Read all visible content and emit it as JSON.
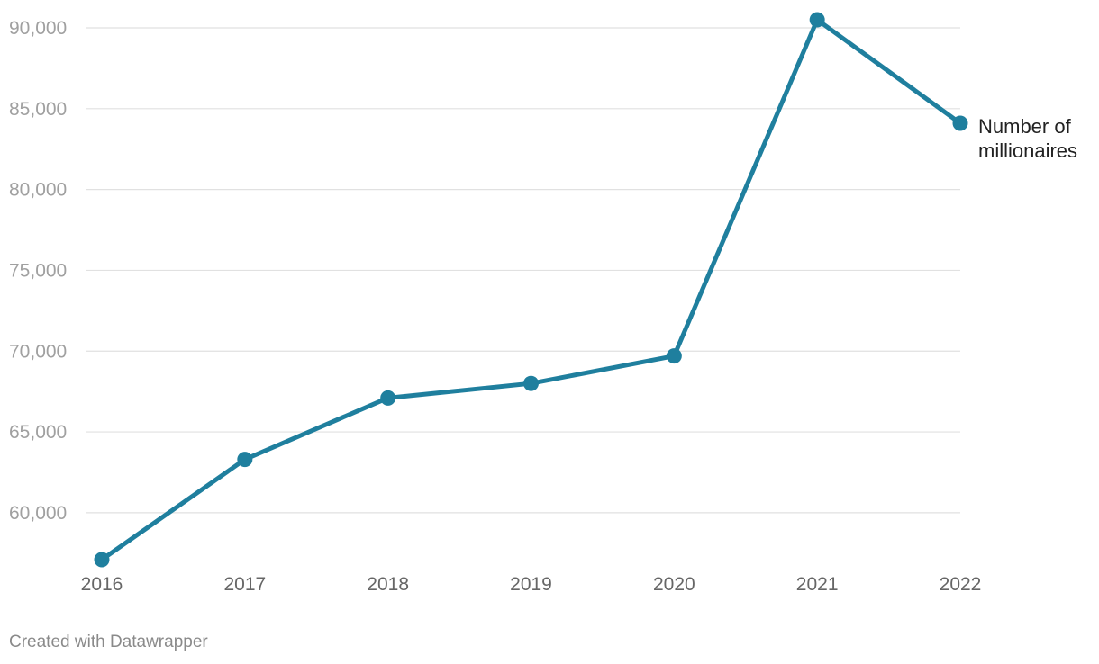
{
  "chart_data": {
    "type": "line",
    "x": [
      "2016",
      "2017",
      "2018",
      "2019",
      "2020",
      "2021",
      "2022"
    ],
    "series": [
      {
        "name": "Number of millionaires",
        "values": [
          57100,
          63300,
          67100,
          68000,
          69700,
          90500,
          84100
        ],
        "color": "#1f7f9e"
      }
    ],
    "y_ticks": [
      60000,
      65000,
      70000,
      75000,
      80000,
      85000,
      90000
    ],
    "y_tick_labels": [
      "60,000",
      "65,000",
      "70,000",
      "75,000",
      "80,000",
      "85,000",
      "90,000"
    ],
    "ylim": [
      57100,
      90500
    ],
    "xlabel": "",
    "ylabel": "",
    "grid": true,
    "legend": "direct label at end of line",
    "direct_label_lines": [
      "Number of",
      "millionaires"
    ]
  },
  "footer": {
    "credit": "Created with Datawrapper"
  }
}
